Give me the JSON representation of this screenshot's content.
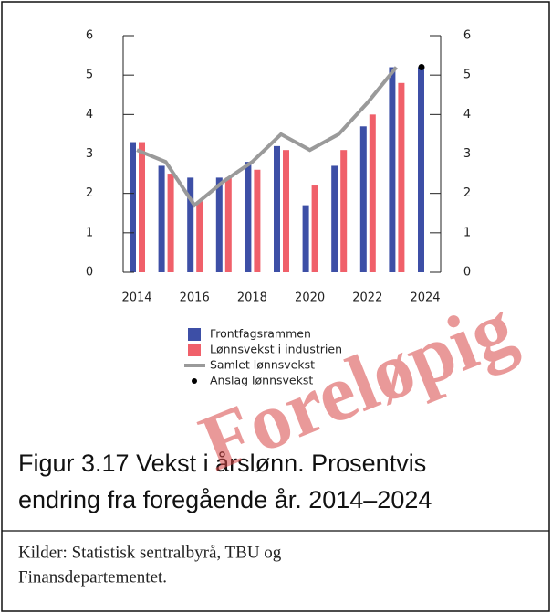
{
  "chart_data": {
    "type": "bar",
    "categories": [
      "2014",
      null,
      "2016",
      null,
      "2018",
      null,
      "2020",
      null,
      "2022",
      null,
      "2024"
    ],
    "series": [
      {
        "name": "Frontfagsrammen",
        "type": "bar",
        "color": "#3d4fa6",
        "values": [
          3.3,
          2.7,
          2.4,
          2.4,
          2.8,
          3.2,
          1.7,
          2.7,
          3.7,
          5.2,
          5.2
        ]
      },
      {
        "name": "Lønnsvekst i industrien",
        "type": "bar",
        "color": "#f0606a",
        "values": [
          3.3,
          2.5,
          1.8,
          2.4,
          2.6,
          3.1,
          2.2,
          3.1,
          4.0,
          4.8,
          null
        ]
      },
      {
        "name": "Samlet lønnsvekst",
        "type": "line",
        "color": "#9a9a9a",
        "values": [
          3.1,
          2.8,
          1.7,
          2.3,
          2.8,
          3.5,
          3.1,
          3.5,
          4.3,
          5.2,
          null
        ]
      },
      {
        "name": "Anslag lønnsvekst",
        "type": "scatter",
        "color": "#000000",
        "values": [
          null,
          null,
          null,
          null,
          null,
          null,
          null,
          null,
          null,
          null,
          5.2
        ]
      }
    ],
    "ylim": [
      0,
      6
    ],
    "yticks": [
      0,
      1,
      2,
      3,
      4,
      5,
      6
    ],
    "y2lim": [
      0,
      6
    ],
    "y2ticks": [
      0,
      1,
      2,
      3,
      4,
      5,
      6
    ],
    "grid": false
  },
  "caption": {
    "title_line1": "Figur 3.17 Vekst i årslønn. Prosentvis",
    "title_line2": "endring fra foregående år. 2014–2024",
    "source_line1": "Kilder: Statistisk sentralbyrå, TBU og",
    "source_line2": "Finansdepartementet."
  },
  "watermark": "Foreløpig"
}
